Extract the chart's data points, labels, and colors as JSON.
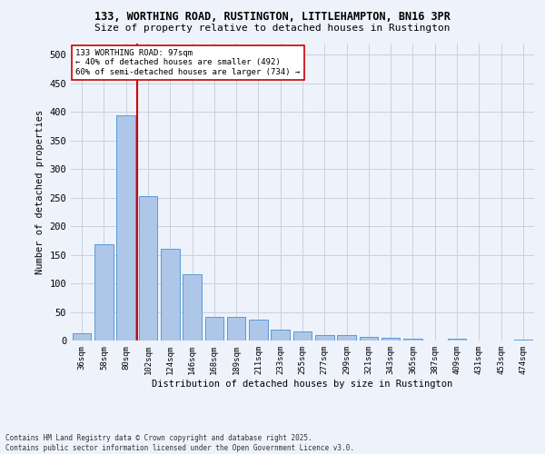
{
  "title_line1": "133, WORTHING ROAD, RUSTINGTON, LITTLEHAMPTON, BN16 3PR",
  "title_line2": "Size of property relative to detached houses in Rustington",
  "xlabel": "Distribution of detached houses by size in Rustington",
  "ylabel": "Number of detached properties",
  "footer_line1": "Contains HM Land Registry data © Crown copyright and database right 2025.",
  "footer_line2": "Contains public sector information licensed under the Open Government Licence v3.0.",
  "annotation_line1": "133 WORTHING ROAD: 97sqm",
  "annotation_line2": "← 40% of detached houses are smaller (492)",
  "annotation_line3": "60% of semi-detached houses are larger (734) →",
  "categories": [
    "36sqm",
    "58sqm",
    "80sqm",
    "102sqm",
    "124sqm",
    "146sqm",
    "168sqm",
    "189sqm",
    "211sqm",
    "233sqm",
    "255sqm",
    "277sqm",
    "299sqm",
    "321sqm",
    "343sqm",
    "365sqm",
    "387sqm",
    "409sqm",
    "431sqm",
    "453sqm",
    "474sqm"
  ],
  "values": [
    12,
    168,
    393,
    252,
    160,
    116,
    42,
    42,
    37,
    19,
    16,
    10,
    9,
    6,
    5,
    3,
    0,
    3,
    0,
    0,
    2
  ],
  "bar_color": "#aec6e8",
  "bar_edge_color": "#5b9bd5",
  "redline_color": "#cc0000",
  "grid_color": "#c8d0e0",
  "background_color": "#eef2fb",
  "annotation_box_color": "#ffffff",
  "annotation_box_edge": "#cc0000",
  "ylim": [
    0,
    520
  ],
  "yticks": [
    0,
    50,
    100,
    150,
    200,
    250,
    300,
    350,
    400,
    450,
    500
  ]
}
